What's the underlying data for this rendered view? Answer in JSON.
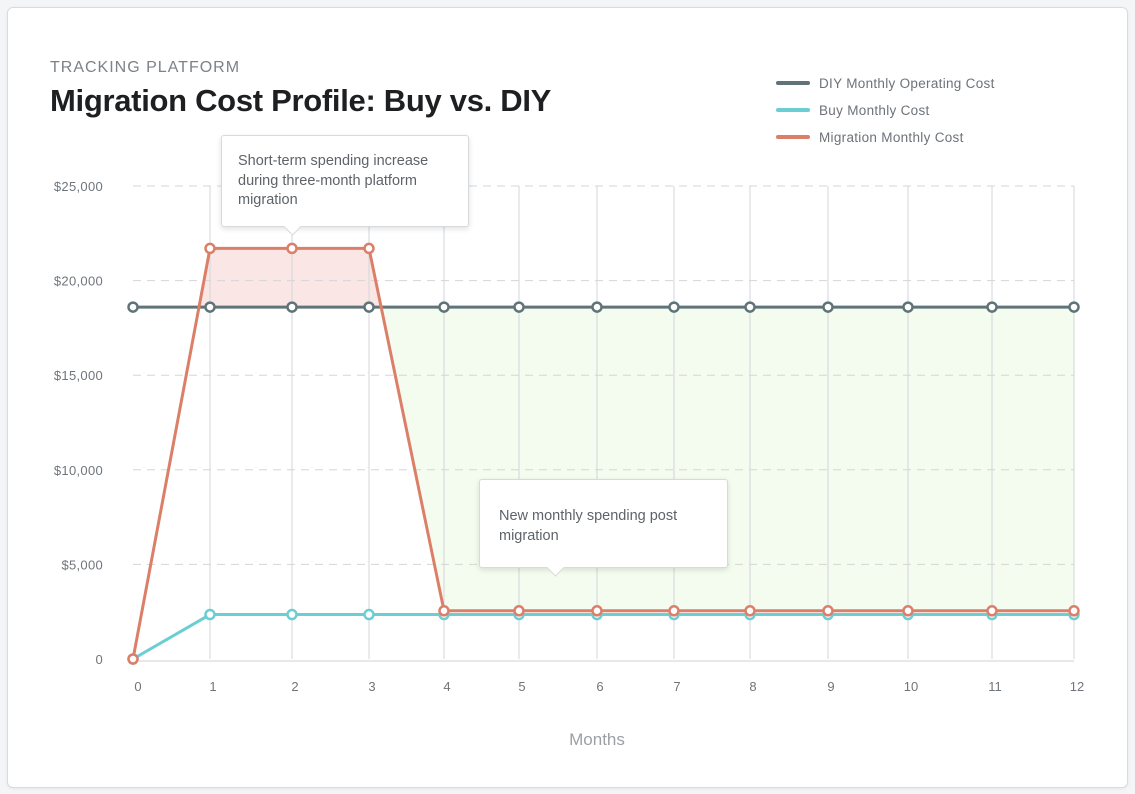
{
  "header": {
    "eyebrow": "TRACKING PLATFORM",
    "title": "Migration Cost Profile: Buy vs. DIY"
  },
  "colors": {
    "diy": "#5f7378",
    "buy": "#6ccdd3",
    "migration": "#dc7f68",
    "grid": "#d3d5d8",
    "increase_fill": "#fbe6e6",
    "savings_fill": "#f4fcef"
  },
  "callouts": {
    "increase": "Short-term spending increase during three-month platform migration",
    "post": "New monthly spending post migration"
  },
  "chart_data": {
    "type": "line",
    "title": "Migration Cost Profile: Buy vs. DIY",
    "xlabel": "Months",
    "ylabel": "",
    "x": [
      0,
      1,
      2,
      3,
      4,
      5,
      6,
      7,
      8,
      9,
      10,
      11,
      12
    ],
    "ylim": [
      0,
      25000
    ],
    "yticks": [
      0,
      5000,
      10000,
      15000,
      20000,
      25000
    ],
    "ytick_labels": [
      "0",
      "$5,000",
      "$10,000",
      "$15,000",
      "$20,000",
      "$25,000"
    ],
    "xtick_labels": [
      "0",
      "1",
      "2",
      "3",
      "4",
      "5",
      "6",
      "7",
      "8",
      "9",
      "10",
      "11",
      "12"
    ],
    "grid": true,
    "legend_position": "top-right",
    "series": [
      {
        "name": "DIY Monthly Operating Cost",
        "key": "diy",
        "values": [
          18600,
          18600,
          18600,
          18600,
          18600,
          18600,
          18600,
          18600,
          18600,
          18600,
          18600,
          18600,
          18600
        ]
      },
      {
        "name": "Buy Monthly Cost",
        "key": "buy",
        "values": [
          0,
          2350,
          2350,
          2350,
          2350,
          2350,
          2350,
          2350,
          2350,
          2350,
          2350,
          2350,
          2350
        ]
      },
      {
        "name": "Migration Monthly Cost",
        "key": "migration",
        "values": [
          0,
          21700,
          21700,
          21700,
          2550,
          2550,
          2550,
          2550,
          2550,
          2550,
          2550,
          2550,
          2550
        ]
      }
    ]
  }
}
